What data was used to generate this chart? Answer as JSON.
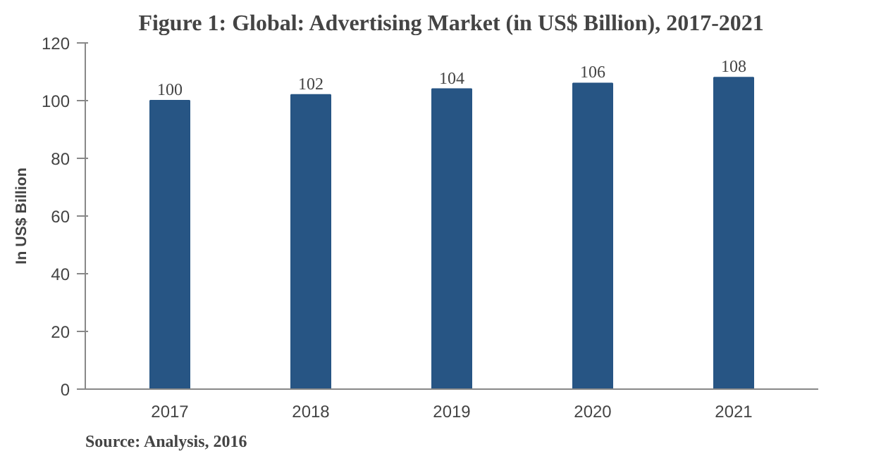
{
  "chart_data": {
    "type": "bar",
    "title": "Figure 1: Global: Advertising Market (in US$ Billion), 2017-2021",
    "ylabel": "In US$ Billion",
    "categories": [
      "2017",
      "2018",
      "2019",
      "2020",
      "2021"
    ],
    "values": [
      100,
      102,
      104,
      106,
      108
    ],
    "color": "#275584",
    "data_labels": true,
    "ylim": [
      0,
      120
    ],
    "yticks": [
      0,
      20,
      40,
      60,
      80,
      100,
      120
    ],
    "grid": false,
    "annotations": [
      "Source: Analysis, 2016"
    ]
  }
}
